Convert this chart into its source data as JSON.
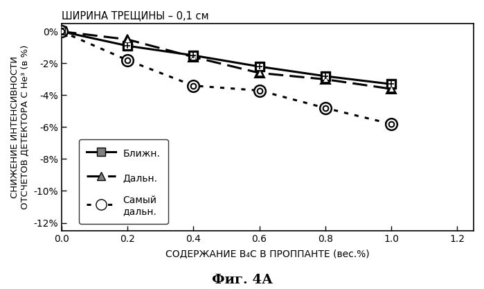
{
  "title": "ШИРИНА ТРЕЩИНЫ – 0,1 см",
  "xlabel": "СОДЕРЖАНИЕ B₄C В ПРОППАНТЕ (вес.%)",
  "ylabel": "СНИЖЕНИЕ ИНТЕНСИВНОСТИ\nОТСЧЕТОВ ДЕТЕКТОРА С He³ (в %)",
  "fig_label": "Фиг. 4А",
  "xlim": [
    0.0,
    1.25
  ],
  "ylim": [
    -12.5,
    0.5
  ],
  "xticks": [
    0.0,
    0.2,
    0.4,
    0.6,
    0.8,
    1.0,
    1.2
  ],
  "yticks": [
    0,
    -2,
    -4,
    -6,
    -8,
    -10,
    -12
  ],
  "ytick_labels": [
    "0%",
    "-2%",
    "-4%",
    "-6%",
    "-8%",
    "-10%",
    "-12%"
  ],
  "x": [
    0.0,
    0.2,
    0.4,
    0.6,
    0.8,
    1.0
  ],
  "near": [
    0.0,
    -0.9,
    -1.5,
    -2.2,
    -2.8,
    -3.3
  ],
  "far": [
    0.0,
    -0.5,
    -1.6,
    -2.6,
    -3.0,
    -3.6
  ],
  "farthest": [
    0.0,
    -1.8,
    -3.4,
    -3.7,
    -4.8,
    -5.8
  ],
  "legend_labels": [
    "Ближн.",
    "Дальн.",
    "Самый\nдальн."
  ],
  "background_color": "#ffffff"
}
